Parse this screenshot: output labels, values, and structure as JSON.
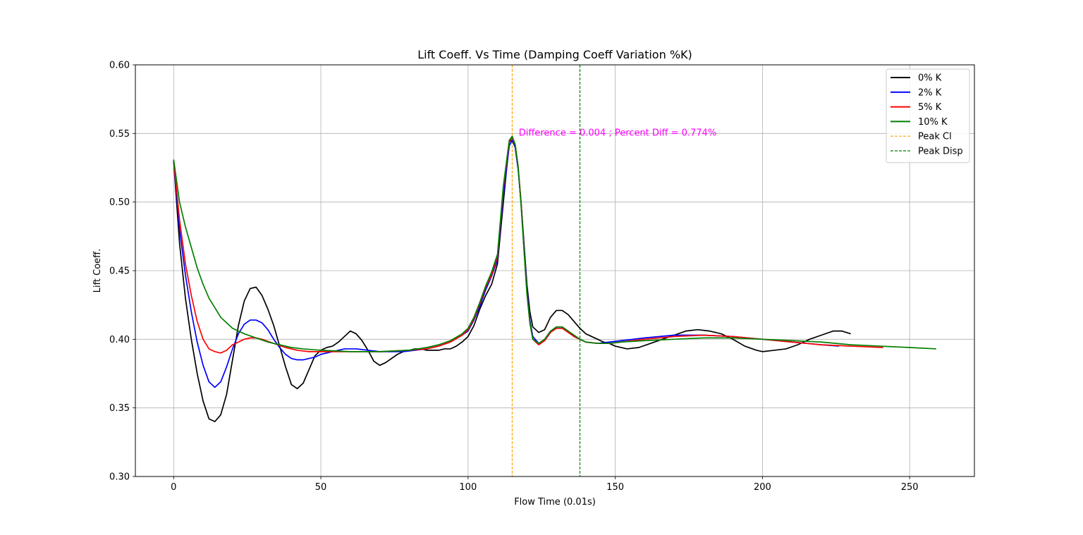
{
  "chart_data": {
    "type": "line",
    "title": "Lift Coeff. Vs Time (Damping Coeff Variation %K)",
    "xlabel": "Flow Time (0.01s)",
    "ylabel": "Lift Coeff.",
    "xlim": [
      -13,
      272
    ],
    "ylim": [
      0.3,
      0.6
    ],
    "xticks": [
      0,
      50,
      100,
      150,
      200,
      250
    ],
    "yticks": [
      0.3,
      0.35,
      0.4,
      0.45,
      0.5,
      0.55,
      0.6
    ],
    "grid": true,
    "legend_position": "top-right",
    "series": [
      {
        "name": "0% K",
        "color": "#000000",
        "points": [
          [
            0,
            0.53
          ],
          [
            2,
            0.47
          ],
          [
            4,
            0.43
          ],
          [
            6,
            0.4
          ],
          [
            8,
            0.375
          ],
          [
            10,
            0.355
          ],
          [
            12,
            0.342
          ],
          [
            14,
            0.34
          ],
          [
            16,
            0.345
          ],
          [
            18,
            0.36
          ],
          [
            20,
            0.385
          ],
          [
            22,
            0.41
          ],
          [
            24,
            0.428
          ],
          [
            26,
            0.437
          ],
          [
            28,
            0.438
          ],
          [
            30,
            0.432
          ],
          [
            32,
            0.422
          ],
          [
            34,
            0.41
          ],
          [
            36,
            0.395
          ],
          [
            38,
            0.38
          ],
          [
            40,
            0.367
          ],
          [
            42,
            0.364
          ],
          [
            44,
            0.368
          ],
          [
            46,
            0.378
          ],
          [
            48,
            0.388
          ],
          [
            50,
            0.392
          ],
          [
            52,
            0.394
          ],
          [
            54,
            0.395
          ],
          [
            56,
            0.398
          ],
          [
            58,
            0.402
          ],
          [
            60,
            0.406
          ],
          [
            62,
            0.404
          ],
          [
            64,
            0.399
          ],
          [
            66,
            0.392
          ],
          [
            68,
            0.384
          ],
          [
            70,
            0.381
          ],
          [
            72,
            0.383
          ],
          [
            74,
            0.386
          ],
          [
            76,
            0.389
          ],
          [
            78,
            0.391
          ],
          [
            80,
            0.392
          ],
          [
            82,
            0.393
          ],
          [
            84,
            0.393
          ],
          [
            86,
            0.392
          ],
          [
            88,
            0.392
          ],
          [
            90,
            0.392
          ],
          [
            92,
            0.393
          ],
          [
            94,
            0.393
          ],
          [
            96,
            0.395
          ],
          [
            98,
            0.398
          ],
          [
            100,
            0.402
          ],
          [
            102,
            0.41
          ],
          [
            104,
            0.422
          ],
          [
            106,
            0.432
          ],
          [
            108,
            0.44
          ],
          [
            110,
            0.455
          ],
          [
            112,
            0.5
          ],
          [
            114,
            0.544
          ],
          [
            115,
            0.545
          ],
          [
            116,
            0.54
          ],
          [
            117,
            0.525
          ],
          [
            118,
            0.5
          ],
          [
            119,
            0.47
          ],
          [
            120,
            0.44
          ],
          [
            121,
            0.42
          ],
          [
            122,
            0.409
          ],
          [
            124,
            0.405
          ],
          [
            126,
            0.407
          ],
          [
            128,
            0.416
          ],
          [
            130,
            0.421
          ],
          [
            132,
            0.421
          ],
          [
            134,
            0.418
          ],
          [
            136,
            0.413
          ],
          [
            138,
            0.408
          ],
          [
            140,
            0.404
          ],
          [
            142,
            0.402
          ],
          [
            144,
            0.4
          ],
          [
            146,
            0.398
          ],
          [
            148,
            0.397
          ],
          [
            150,
            0.395
          ],
          [
            154,
            0.393
          ],
          [
            158,
            0.394
          ],
          [
            162,
            0.397
          ],
          [
            166,
            0.4
          ],
          [
            170,
            0.403
          ],
          [
            174,
            0.406
          ],
          [
            178,
            0.407
          ],
          [
            182,
            0.406
          ],
          [
            186,
            0.404
          ],
          [
            190,
            0.4
          ],
          [
            194,
            0.395
          ],
          [
            198,
            0.392
          ],
          [
            200,
            0.391
          ],
          [
            204,
            0.392
          ],
          [
            208,
            0.393
          ],
          [
            212,
            0.396
          ],
          [
            216,
            0.4
          ],
          [
            220,
            0.403
          ],
          [
            224,
            0.406
          ],
          [
            227,
            0.406
          ],
          [
            230,
            0.404
          ]
        ]
      },
      {
        "name": "2% K",
        "color": "#0000ff",
        "points": [
          [
            0,
            0.53
          ],
          [
            2,
            0.48
          ],
          [
            4,
            0.447
          ],
          [
            6,
            0.42
          ],
          [
            8,
            0.398
          ],
          [
            10,
            0.381
          ],
          [
            12,
            0.369
          ],
          [
            14,
            0.365
          ],
          [
            16,
            0.369
          ],
          [
            18,
            0.38
          ],
          [
            20,
            0.393
          ],
          [
            22,
            0.404
          ],
          [
            24,
            0.411
          ],
          [
            26,
            0.414
          ],
          [
            28,
            0.414
          ],
          [
            30,
            0.412
          ],
          [
            32,
            0.407
          ],
          [
            34,
            0.4
          ],
          [
            36,
            0.394
          ],
          [
            38,
            0.389
          ],
          [
            40,
            0.386
          ],
          [
            42,
            0.385
          ],
          [
            44,
            0.385
          ],
          [
            46,
            0.386
          ],
          [
            48,
            0.387
          ],
          [
            50,
            0.389
          ],
          [
            54,
            0.391
          ],
          [
            58,
            0.393
          ],
          [
            62,
            0.393
          ],
          [
            66,
            0.392
          ],
          [
            70,
            0.391
          ],
          [
            74,
            0.391
          ],
          [
            78,
            0.391
          ],
          [
            82,
            0.392
          ],
          [
            86,
            0.393
          ],
          [
            90,
            0.395
          ],
          [
            94,
            0.398
          ],
          [
            98,
            0.403
          ],
          [
            100,
            0.406
          ],
          [
            102,
            0.414
          ],
          [
            104,
            0.424
          ],
          [
            106,
            0.436
          ],
          [
            108,
            0.446
          ],
          [
            110,
            0.458
          ],
          [
            112,
            0.505
          ],
          [
            114,
            0.541
          ],
          [
            115,
            0.545
          ],
          [
            116,
            0.54
          ],
          [
            117,
            0.524
          ],
          [
            118,
            0.5
          ],
          [
            119,
            0.468
          ],
          [
            120,
            0.437
          ],
          [
            121,
            0.414
          ],
          [
            122,
            0.402
          ],
          [
            124,
            0.397
          ],
          [
            126,
            0.399
          ],
          [
            128,
            0.405
          ],
          [
            130,
            0.409
          ],
          [
            132,
            0.409
          ],
          [
            134,
            0.406
          ],
          [
            136,
            0.402
          ],
          [
            138,
            0.4
          ],
          [
            140,
            0.398
          ],
          [
            144,
            0.397
          ],
          [
            148,
            0.398
          ],
          [
            152,
            0.399
          ],
          [
            160,
            0.401
          ],
          [
            170,
            0.403
          ],
          [
            180,
            0.403
          ],
          [
            190,
            0.402
          ],
          [
            200,
            0.4
          ],
          [
            210,
            0.398
          ],
          [
            220,
            0.396
          ],
          [
            226,
            0.395
          ]
        ]
      },
      {
        "name": "5% K",
        "color": "#ff0000",
        "points": [
          [
            0,
            0.53
          ],
          [
            2,
            0.487
          ],
          [
            4,
            0.455
          ],
          [
            6,
            0.432
          ],
          [
            8,
            0.413
          ],
          [
            10,
            0.4
          ],
          [
            12,
            0.393
          ],
          [
            14,
            0.391
          ],
          [
            16,
            0.39
          ],
          [
            18,
            0.392
          ],
          [
            20,
            0.396
          ],
          [
            22,
            0.398
          ],
          [
            24,
            0.4
          ],
          [
            26,
            0.401
          ],
          [
            28,
            0.401
          ],
          [
            30,
            0.4
          ],
          [
            34,
            0.397
          ],
          [
            38,
            0.394
          ],
          [
            42,
            0.392
          ],
          [
            46,
            0.391
          ],
          [
            50,
            0.391
          ],
          [
            60,
            0.391
          ],
          [
            70,
            0.391
          ],
          [
            80,
            0.392
          ],
          [
            86,
            0.393
          ],
          [
            90,
            0.395
          ],
          [
            94,
            0.398
          ],
          [
            98,
            0.403
          ],
          [
            100,
            0.407
          ],
          [
            102,
            0.415
          ],
          [
            104,
            0.426
          ],
          [
            106,
            0.438
          ],
          [
            108,
            0.447
          ],
          [
            110,
            0.46
          ],
          [
            112,
            0.51
          ],
          [
            114,
            0.544
          ],
          [
            115,
            0.547
          ],
          [
            116,
            0.542
          ],
          [
            117,
            0.526
          ],
          [
            118,
            0.5
          ],
          [
            119,
            0.466
          ],
          [
            120,
            0.434
          ],
          [
            121,
            0.412
          ],
          [
            122,
            0.4
          ],
          [
            124,
            0.396
          ],
          [
            126,
            0.399
          ],
          [
            128,
            0.405
          ],
          [
            130,
            0.408
          ],
          [
            132,
            0.408
          ],
          [
            134,
            0.405
          ],
          [
            136,
            0.402
          ],
          [
            138,
            0.4
          ],
          [
            140,
            0.398
          ],
          [
            144,
            0.397
          ],
          [
            148,
            0.397
          ],
          [
            152,
            0.398
          ],
          [
            160,
            0.4
          ],
          [
            170,
            0.402
          ],
          [
            180,
            0.403
          ],
          [
            190,
            0.402
          ],
          [
            200,
            0.4
          ],
          [
            210,
            0.398
          ],
          [
            220,
            0.396
          ],
          [
            230,
            0.395
          ],
          [
            241,
            0.394
          ]
        ]
      },
      {
        "name": "10% K",
        "color": "#008000",
        "points": [
          [
            0,
            0.531
          ],
          [
            2,
            0.5
          ],
          [
            4,
            0.482
          ],
          [
            6,
            0.467
          ],
          [
            8,
            0.452
          ],
          [
            10,
            0.44
          ],
          [
            12,
            0.43
          ],
          [
            14,
            0.423
          ],
          [
            16,
            0.416
          ],
          [
            18,
            0.412
          ],
          [
            20,
            0.408
          ],
          [
            24,
            0.404
          ],
          [
            28,
            0.401
          ],
          [
            32,
            0.398
          ],
          [
            36,
            0.396
          ],
          [
            40,
            0.394
          ],
          [
            44,
            0.393
          ],
          [
            50,
            0.392
          ],
          [
            60,
            0.391
          ],
          [
            70,
            0.391
          ],
          [
            80,
            0.392
          ],
          [
            86,
            0.394
          ],
          [
            90,
            0.396
          ],
          [
            94,
            0.399
          ],
          [
            98,
            0.404
          ],
          [
            100,
            0.408
          ],
          [
            102,
            0.416
          ],
          [
            104,
            0.427
          ],
          [
            106,
            0.439
          ],
          [
            108,
            0.449
          ],
          [
            110,
            0.462
          ],
          [
            112,
            0.512
          ],
          [
            114,
            0.545
          ],
          [
            115,
            0.548
          ],
          [
            116,
            0.542
          ],
          [
            117,
            0.526
          ],
          [
            118,
            0.498
          ],
          [
            119,
            0.465
          ],
          [
            120,
            0.433
          ],
          [
            121,
            0.412
          ],
          [
            122,
            0.4
          ],
          [
            124,
            0.397
          ],
          [
            126,
            0.4
          ],
          [
            128,
            0.406
          ],
          [
            130,
            0.409
          ],
          [
            132,
            0.409
          ],
          [
            134,
            0.406
          ],
          [
            136,
            0.403
          ],
          [
            138,
            0.4
          ],
          [
            140,
            0.398
          ],
          [
            144,
            0.397
          ],
          [
            148,
            0.397
          ],
          [
            152,
            0.398
          ],
          [
            160,
            0.399
          ],
          [
            170,
            0.4
          ],
          [
            180,
            0.401
          ],
          [
            190,
            0.401
          ],
          [
            200,
            0.4
          ],
          [
            210,
            0.399
          ],
          [
            220,
            0.398
          ],
          [
            230,
            0.396
          ],
          [
            240,
            0.395
          ],
          [
            250,
            0.394
          ],
          [
            259,
            0.393
          ]
        ]
      }
    ],
    "vlines": [
      {
        "name": "Peak Cl",
        "x": 115,
        "color": "#ffa500"
      },
      {
        "name": "Peak Disp",
        "x": 138,
        "color": "#008000"
      }
    ],
    "annotation": {
      "text": "Difference = 0.004 ; Percent Diff = 0.774%",
      "x": 117,
      "y": 0.549,
      "color": "#ff00ff"
    }
  }
}
